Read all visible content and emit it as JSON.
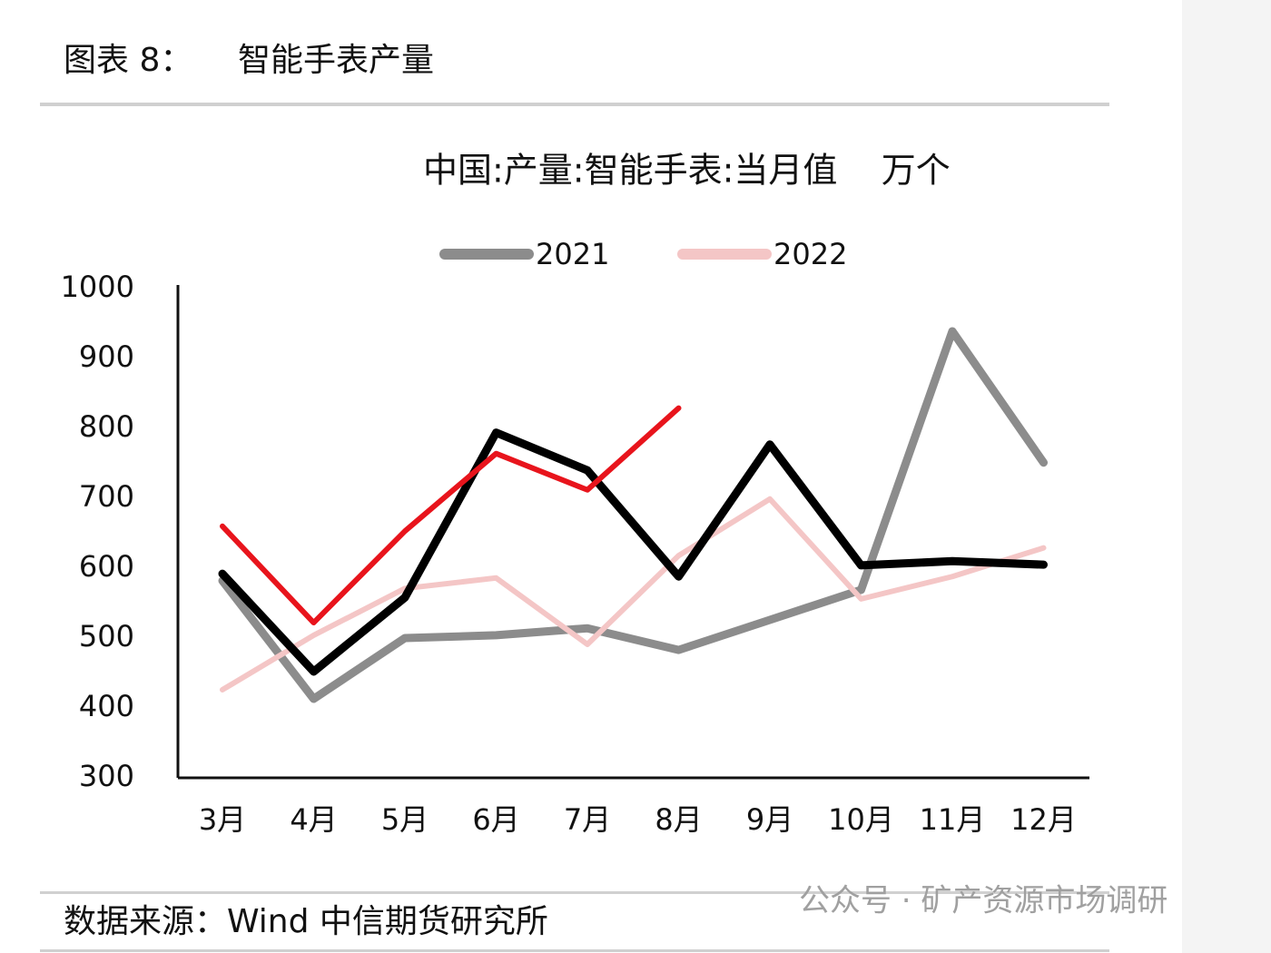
{
  "header": {
    "label": "图表 8：",
    "title": "智能手表产量"
  },
  "chart_data": {
    "type": "line",
    "title": "中国:产量:智能手表:当月值    万个",
    "categories": [
      "3月",
      "4月",
      "5月",
      "6月",
      "7月",
      "8月",
      "9月",
      "10月",
      "11月",
      "12月"
    ],
    "series": [
      {
        "name": "2021",
        "color": "#8c8c8c",
        "values": [
          582,
          413,
          500,
          504,
          514,
          483,
          526,
          569,
          939,
          751
        ]
      },
      {
        "name": "2022",
        "color": "#f4c6c6",
        "values": [
          426,
          504,
          571,
          586,
          491,
          618,
          699,
          556,
          588,
          629
        ]
      },
      {
        "color": "#000000",
        "values": [
          592,
          452,
          558,
          794,
          740,
          588,
          777,
          604,
          610,
          605
        ]
      },
      {
        "color": "#e8141c",
        "values": [
          660,
          522,
          653,
          764,
          712,
          829,
          null,
          null,
          null,
          null
        ]
      }
    ],
    "ylim": [
      300,
      1000
    ],
    "yticks": [
      300,
      400,
      500,
      600,
      700,
      800,
      900,
      1000
    ],
    "grid": false,
    "legend": "top"
  },
  "footer": {
    "source": "数据来源：Wind 中信期货研究所",
    "watermark": "公众号 · 矿产资源市场调研"
  }
}
